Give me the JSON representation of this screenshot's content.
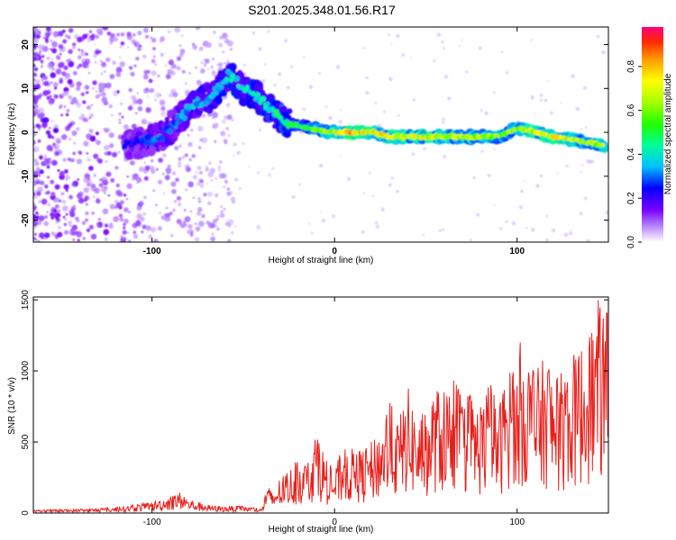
{
  "title": "S201.2025.348.01.56.R17",
  "colorbar": {
    "label": "Normalized spectral amplitude",
    "ticks": [
      {
        "value": 0.0,
        "label": "0.0"
      },
      {
        "value": 0.2,
        "label": "0.2"
      },
      {
        "value": 0.4,
        "label": "0.4"
      },
      {
        "value": 0.6,
        "label": "0.6"
      },
      {
        "value": 0.8,
        "label": "0.8"
      }
    ],
    "range": [
      0,
      0.98
    ]
  },
  "chart_data": [
    {
      "type": "heatmap",
      "xlabel": "Height of straight line (km)",
      "ylabel": "Frequency (Hz)",
      "xlim": [
        -165,
        150
      ],
      "ylim": [
        -25,
        24
      ],
      "xticks": [
        {
          "value": -100,
          "label": "-100"
        },
        {
          "value": 0,
          "label": "0"
        },
        {
          "value": 100,
          "label": "100"
        }
      ],
      "yticks": [
        {
          "value": -20,
          "label": "-20"
        },
        {
          "value": -10,
          "label": "-10"
        },
        {
          "value": 0,
          "label": "0"
        },
        {
          "value": 10,
          "label": "10"
        },
        {
          "value": 20,
          "label": "20"
        }
      ],
      "ridge": [
        {
          "x": -115,
          "y": -3,
          "amp": 0.25
        },
        {
          "x": -105,
          "y": -2,
          "amp": 0.3
        },
        {
          "x": -95,
          "y": -1,
          "amp": 0.35
        },
        {
          "x": -85,
          "y": 3,
          "amp": 0.35
        },
        {
          "x": -78,
          "y": 6,
          "amp": 0.4
        },
        {
          "x": -68,
          "y": 8,
          "amp": 0.4
        },
        {
          "x": -58,
          "y": 13,
          "amp": 0.45
        },
        {
          "x": -50,
          "y": 10,
          "amp": 0.45
        },
        {
          "x": -42,
          "y": 8,
          "amp": 0.45
        },
        {
          "x": -32,
          "y": 4,
          "amp": 0.5
        },
        {
          "x": -25,
          "y": 2,
          "amp": 0.55
        },
        {
          "x": -15,
          "y": 1,
          "amp": 0.6
        },
        {
          "x": 0,
          "y": 0,
          "amp": 0.8
        },
        {
          "x": 10,
          "y": 0,
          "amp": 0.9
        },
        {
          "x": 20,
          "y": 0,
          "amp": 0.85
        },
        {
          "x": 30,
          "y": -1,
          "amp": 0.8
        },
        {
          "x": 45,
          "y": -1,
          "amp": 0.8
        },
        {
          "x": 60,
          "y": -1,
          "amp": 0.75
        },
        {
          "x": 75,
          "y": -1,
          "amp": 0.75
        },
        {
          "x": 90,
          "y": -1,
          "amp": 0.7
        },
        {
          "x": 100,
          "y": 1,
          "amp": 0.7
        },
        {
          "x": 110,
          "y": 0,
          "amp": 0.8
        },
        {
          "x": 120,
          "y": -1,
          "amp": 0.85
        },
        {
          "x": 135,
          "y": -2,
          "amp": 0.75
        },
        {
          "x": 148,
          "y": -3,
          "amp": 0.7
        }
      ]
    },
    {
      "type": "line",
      "xlabel": "Height of straight line (km)",
      "ylabel": "SNR (10 * v/v)",
      "xlim": [
        -165,
        150
      ],
      "ylim": [
        0,
        1520
      ],
      "xticks": [
        {
          "value": -100,
          "label": "-100"
        },
        {
          "value": 0,
          "label": "0"
        },
        {
          "value": 100,
          "label": "100"
        }
      ],
      "yticks": [
        {
          "value": 0,
          "label": "0"
        },
        {
          "value": 500,
          "label": "500"
        },
        {
          "value": 1000,
          "label": "1000"
        },
        {
          "value": 1500,
          "label": "1500"
        }
      ],
      "series": [
        {
          "color": "#e8201c",
          "x": [
            -165,
            -150,
            -135,
            -120,
            -110,
            -100,
            -90,
            -85,
            -80,
            -75,
            -70,
            -65,
            -60,
            -55,
            -50,
            -45,
            -40,
            -37,
            -34,
            -30,
            -25,
            -20,
            -15,
            -10,
            -5,
            0,
            5,
            10,
            15,
            20,
            25,
            30,
            35,
            40,
            45,
            50,
            55,
            60,
            65,
            70,
            75,
            80,
            85,
            90,
            95,
            100,
            102,
            105,
            110,
            115,
            117,
            120,
            125,
            130,
            135,
            140,
            144,
            147,
            150
          ],
          "y": [
            20,
            25,
            30,
            40,
            60,
            80,
            120,
            150,
            100,
            80,
            60,
            50,
            50,
            50,
            50,
            40,
            30,
            200,
            150,
            250,
            300,
            400,
            350,
            600,
            400,
            300,
            500,
            450,
            450,
            500,
            600,
            800,
            650,
            900,
            700,
            700,
            900,
            850,
            1000,
            800,
            850,
            750,
            950,
            750,
            1100,
            1000,
            1250,
            1150,
            1000,
            1100,
            1150,
            950,
            1000,
            1100,
            1200,
            1300,
            1500,
            1480,
            1400
          ]
        }
      ]
    }
  ]
}
